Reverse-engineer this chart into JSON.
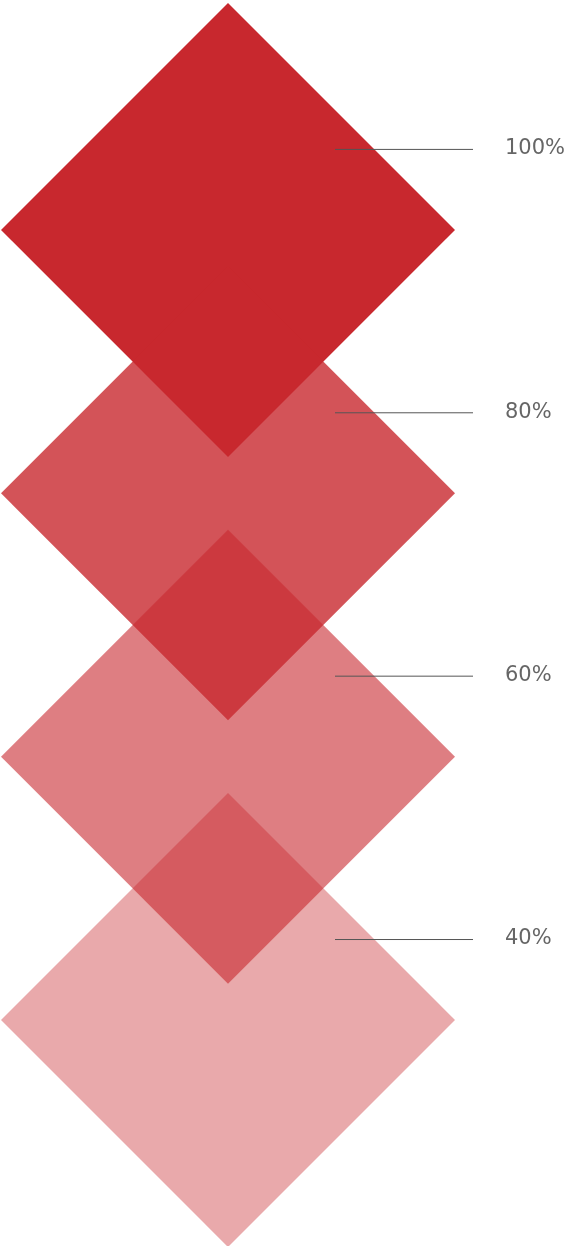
{
  "chart_data": {
    "type": "other",
    "color": "#c8282e",
    "values": [
      100,
      80,
      60,
      40
    ],
    "value_labels": [
      "100%",
      "80%",
      "60%",
      "40%"
    ]
  }
}
